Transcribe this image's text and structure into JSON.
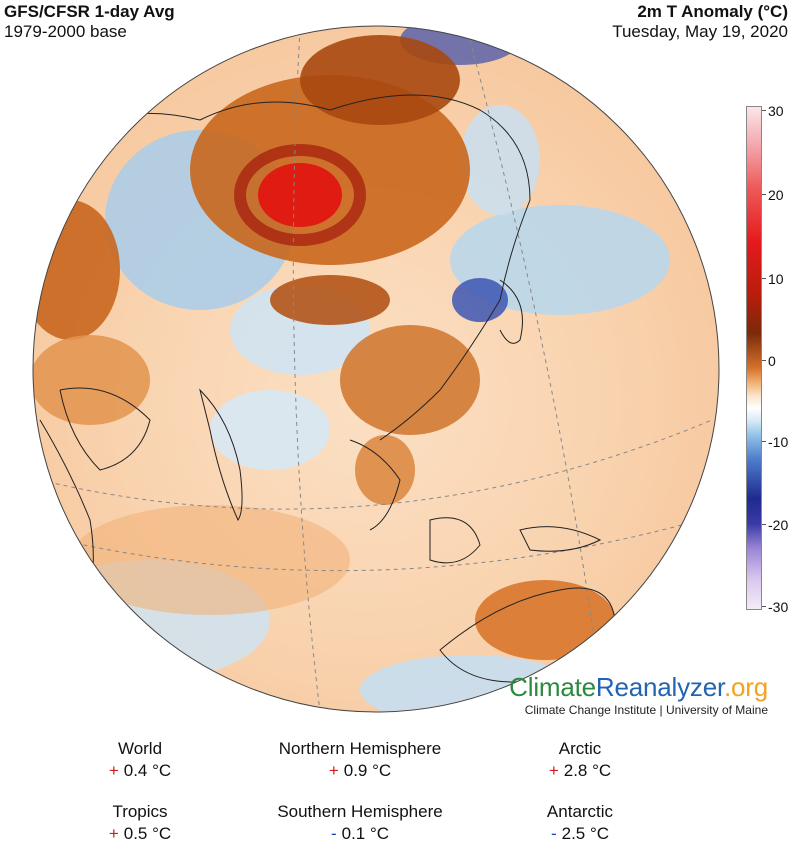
{
  "header": {
    "title_left": "GFS/CFSR 1-day Avg",
    "subtitle_left": "1979-2000 base",
    "title_right": "2m T Anomaly (°C)",
    "subtitle_right": "Tuesday, May 19, 2020"
  },
  "colorbar": {
    "ticks": [
      "30",
      "20",
      "10",
      "0",
      "-10",
      "-20",
      "-30"
    ]
  },
  "logo": {
    "part1": "Climate",
    "part2": "Reanalyzer",
    "part3": ".org",
    "subtitle": "Climate Change Institute | University of Maine"
  },
  "stats": [
    {
      "label": "World",
      "sign": "+",
      "value": "0.4 °C"
    },
    {
      "label": "Northern Hemisphere",
      "sign": "+",
      "value": "0.9 °C"
    },
    {
      "label": "Arctic",
      "sign": "+",
      "value": "2.8 °C"
    },
    {
      "label": "Tropics",
      "sign": "+",
      "value": "0.5 °C"
    },
    {
      "label": "Southern Hemisphere",
      "sign": "-",
      "value": "0.1 °C"
    },
    {
      "label": "Antarctic",
      "sign": "-",
      "value": "2.5 °C"
    }
  ],
  "colors": {
    "warm": "#d4722a",
    "hot": "#e41a1c",
    "cold": "#4f7fcd",
    "plus_sign": "#d01c1c",
    "minus_sign": "#1f3fb8"
  }
}
